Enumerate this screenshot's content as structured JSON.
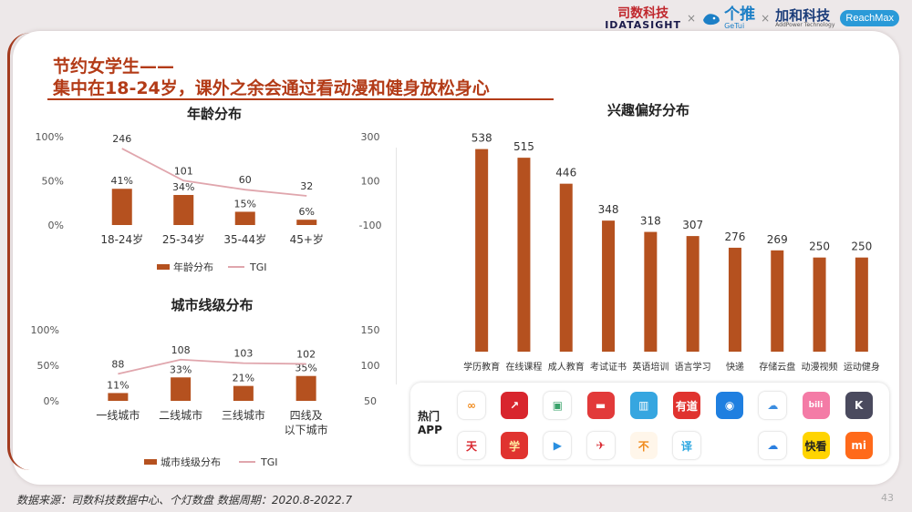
{
  "brand": {
    "sishu_cn": "司数科技",
    "sishu_en": "IDATASIGHT",
    "getui_cn": "个推",
    "getui_en": "GeTui",
    "jiahe_cn": "加和科技",
    "jiahe_sub": "AddPower Technology",
    "reachmax": "ReachMax",
    "separator": "×"
  },
  "slide": {
    "title_line1": "节约女学生——",
    "title_line2": "集中在18-24岁，课外之余会通过看动漫和健身放松身心",
    "footnote": "数据来源：司数科技数据中心、个灯数盘   数据周期：2020.8-2022.7",
    "page_number": "43"
  },
  "chart_data": [
    {
      "id": "age",
      "type": "bar",
      "title": "年龄分布",
      "categories": [
        "18-24岁",
        "25-34岁",
        "35-44岁",
        "45+岁"
      ],
      "series": [
        {
          "name": "年龄分布",
          "values": [
            41,
            34,
            15,
            6
          ],
          "labels": [
            "41%",
            "34%",
            "15%",
            "6%"
          ],
          "axis": "left"
        },
        {
          "name": "TGI",
          "values": [
            246,
            101,
            60,
            32
          ],
          "labels": [
            "246",
            "101",
            "60",
            "32"
          ],
          "axis": "right",
          "type": "line"
        }
      ],
      "y_left": {
        "range": [
          0,
          100
        ],
        "ticks": [
          "100%",
          "50%",
          "0%"
        ]
      },
      "y_right": {
        "range": [
          -100,
          300
        ],
        "ticks": [
          "300",
          "100",
          "-100"
        ]
      },
      "legend": "bottom",
      "colors": {
        "bar": "#b5511f",
        "line": "#e0a6ad"
      }
    },
    {
      "id": "city",
      "type": "bar",
      "title": "城市线级分布",
      "categories": [
        "一线城市",
        "二线城市",
        "三线城市",
        "四线及以下城市"
      ],
      "category_lines": [
        [
          "一线城市"
        ],
        [
          "二线城市"
        ],
        [
          "三线城市"
        ],
        [
          "四线及",
          "以下城市"
        ]
      ],
      "series": [
        {
          "name": "城市线级分布",
          "values": [
            11,
            33,
            21,
            35
          ],
          "labels": [
            "11%",
            "33%",
            "21%",
            "35%"
          ],
          "axis": "left"
        },
        {
          "name": "TGI",
          "values": [
            88,
            108,
            103,
            102
          ],
          "labels": [
            "88",
            "108",
            "103",
            "102"
          ],
          "axis": "right",
          "type": "line"
        }
      ],
      "y_left": {
        "range": [
          0,
          100
        ],
        "ticks": [
          "100%",
          "50%",
          "0%"
        ]
      },
      "y_right": {
        "range": [
          50,
          150
        ],
        "ticks": [
          "150",
          "100",
          "50"
        ]
      },
      "legend": "bottom",
      "colors": {
        "bar": "#b5511f",
        "line": "#e0a6ad"
      }
    },
    {
      "id": "interest",
      "type": "bar",
      "title": "兴趣偏好分布",
      "categories": [
        "学历教育",
        "在线课程",
        "成人教育",
        "考试证书",
        "英语培训",
        "语言学习",
        "快递",
        "存储云盘",
        "动漫视频",
        "运动健身"
      ],
      "values": [
        538,
        515,
        446,
        348,
        318,
        307,
        276,
        269,
        250,
        250
      ],
      "ylim": [
        0,
        600
      ],
      "colors": {
        "bar": "#b5511f"
      }
    }
  ],
  "apps": {
    "label_line1": "热门",
    "label_line2": "APP",
    "icons": [
      {
        "name": "app-icon-loop",
        "glyph": "∞",
        "bg": "#ffffff",
        "fg": "#f08a1c"
      },
      {
        "name": "app-icon-xuexitong",
        "glyph": "↗",
        "bg": "#d8252d",
        "fg": "#ffffff"
      },
      {
        "name": "app-icon-book",
        "glyph": "▣",
        "bg": "#ffffff",
        "fg": "#3aa36b"
      },
      {
        "name": "app-icon-driving",
        "glyph": "▬",
        "bg": "#e23a3a",
        "fg": "#ffffff"
      },
      {
        "name": "app-icon-cards",
        "glyph": "▥",
        "bg": "#36a6e0",
        "fg": "#ffffff"
      },
      {
        "name": "app-icon-youdao",
        "glyph": "有道",
        "bg": "#e0332f",
        "fg": "#ffffff"
      },
      {
        "name": "app-icon-robot",
        "glyph": "◉",
        "bg": "#1f7fe0",
        "fg": "#ffffff"
      },
      {
        "name": "app-icon-cloud-disk",
        "glyph": "☁",
        "bg": "#ffffff",
        "fg": "#3b8de0"
      },
      {
        "name": "app-icon-bilibili",
        "glyph": "bili",
        "bg": "#f47ba6",
        "fg": "#ffffff"
      },
      {
        "name": "app-icon-keep",
        "glyph": "K",
        "bg": "#4a4a5e",
        "fg": "#ffffff"
      },
      {
        "name": "app-icon-tiantian",
        "glyph": "天",
        "bg": "#ffffff",
        "fg": "#d8252d"
      },
      {
        "name": "app-icon-xuexi",
        "glyph": "学",
        "bg": "#e0332f",
        "fg": "#ffe9a0"
      },
      {
        "name": "app-icon-video-play",
        "glyph": "▶",
        "bg": "#ffffff",
        "fg": "#2a8fe0"
      },
      {
        "name": "app-icon-bird",
        "glyph": "✈",
        "bg": "#ffffff",
        "fg": "#d8252d"
      },
      {
        "name": "app-icon-orange",
        "glyph": "不",
        "bg": "#fff6ea",
        "fg": "#f08a1c"
      },
      {
        "name": "app-icon-translate",
        "glyph": "译",
        "bg": "#ffffff",
        "fg": "#2aa6e0"
      },
      {
        "name": "app-icon-empty",
        "glyph": "",
        "bg": "#ffffff",
        "fg": "#ffffff"
      },
      {
        "name": "app-icon-cloud",
        "glyph": "☁",
        "bg": "#ffffff",
        "fg": "#2a7fe0"
      },
      {
        "name": "app-icon-kuaikan",
        "glyph": "快看",
        "bg": "#ffd400",
        "fg": "#222222"
      },
      {
        "name": "app-icon-mi",
        "glyph": "mi",
        "bg": "#ff6a1a",
        "fg": "#ffffff"
      }
    ]
  }
}
